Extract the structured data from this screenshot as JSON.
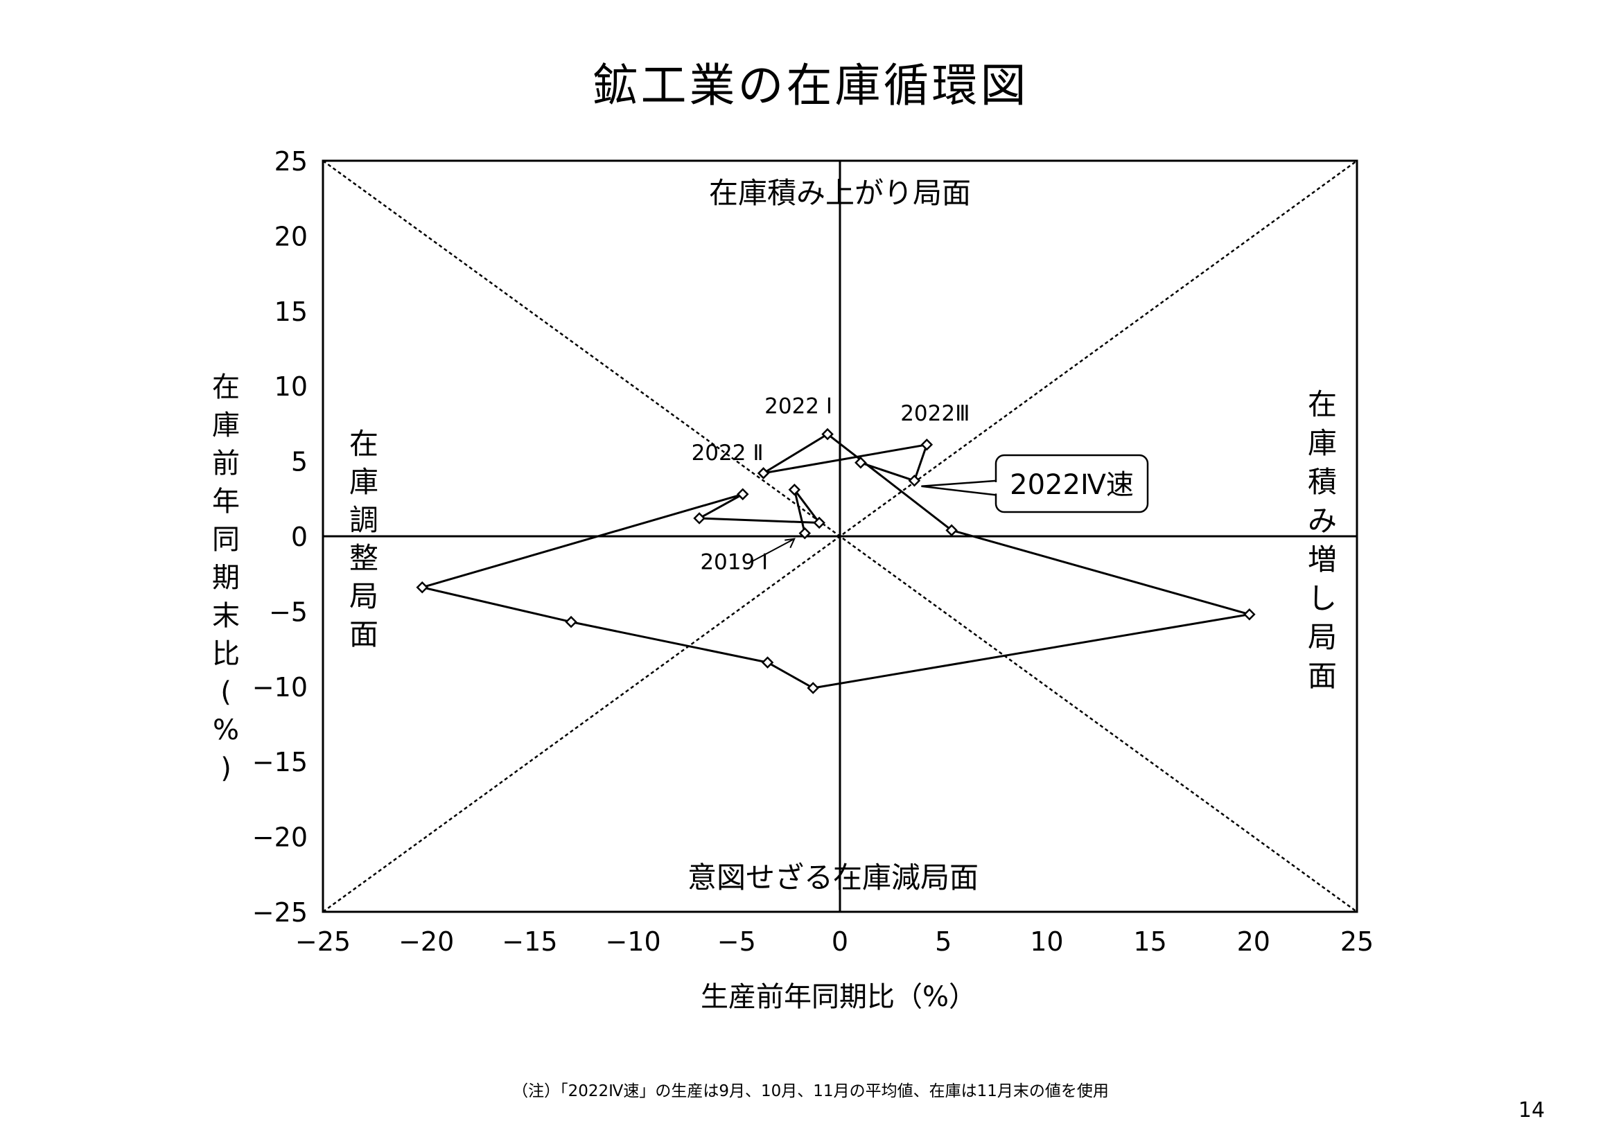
{
  "title": "鉱工業の在庫循環図",
  "chart_data": {
    "type": "scatter",
    "xlabel": "生産前年同期比（%）",
    "ylabel": "在庫前年同期末比（%）",
    "xlim": [
      -25,
      25
    ],
    "ylim": [
      -25,
      25
    ],
    "x_ticks": [
      "−25",
      "−20",
      "−15",
      "−10",
      "−5",
      "0",
      "5",
      "10",
      "15",
      "20",
      "25"
    ],
    "y_ticks": [
      "25",
      "20",
      "15",
      "10",
      "5",
      "0",
      "−5",
      "−10",
      "−15",
      "−20",
      "−25"
    ],
    "x_tick_values": [
      -25,
      -20,
      -15,
      -10,
      -5,
      0,
      5,
      10,
      15,
      20,
      25
    ],
    "y_tick_values": [
      25,
      20,
      15,
      10,
      5,
      0,
      -5,
      -10,
      -15,
      -20,
      -25
    ],
    "grid": false,
    "reference_lines": [
      "y=x",
      "y=-x",
      "x=0",
      "y=0"
    ],
    "points": [
      {
        "x": -1.7,
        "y": 0.2,
        "label": "2019 Ⅰ"
      },
      {
        "x": -2.2,
        "y": 3.1
      },
      {
        "x": -1.0,
        "y": 0.9
      },
      {
        "x": -6.8,
        "y": 1.2
      },
      {
        "x": -4.7,
        "y": 2.8
      },
      {
        "x": -20.2,
        "y": -3.4
      },
      {
        "x": -13.0,
        "y": -5.7
      },
      {
        "x": -3.5,
        "y": -8.4
      },
      {
        "x": -1.3,
        "y": -10.1
      },
      {
        "x": 19.8,
        "y": -5.2
      },
      {
        "x": 5.4,
        "y": 0.4
      },
      {
        "x": -0.6,
        "y": 6.8,
        "label": "2022 Ⅰ"
      },
      {
        "x": -3.7,
        "y": 4.2,
        "label": "2022 Ⅱ"
      },
      {
        "x": 4.2,
        "y": 6.1,
        "label": "2022Ⅲ"
      },
      {
        "x": 3.6,
        "y": 3.7,
        "label": "2022Ⅳ速"
      },
      {
        "x": 1.0,
        "y": 4.9
      }
    ],
    "quadrant_labels": {
      "top": "在庫積み上がり局面",
      "left": "在庫調整局面",
      "right": "在庫積み増し局面",
      "bottom": "意図せざる在庫減局面"
    }
  },
  "note": "（注）「2022Ⅳ速」の生産は9月、10月、11月の平均値、在庫は11月末の値を使用",
  "page_number": "14"
}
